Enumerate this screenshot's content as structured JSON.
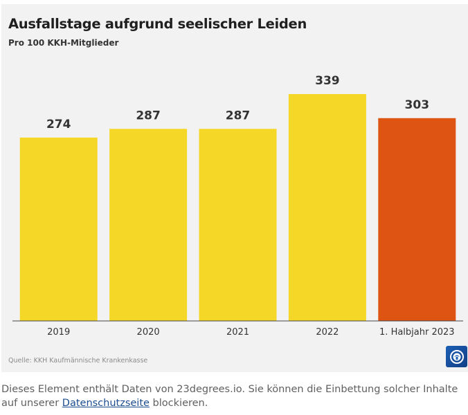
{
  "header": {
    "title": "Ausfallstage aufgrund seelischer Leiden",
    "subtitle": "Pro 100 KKH-Mitglieder"
  },
  "footer": {
    "source": "Quelle: KKH Kaufmännische Krankenkasse"
  },
  "icons": {
    "brand": "tagesschau-logo-icon"
  },
  "colors": {
    "bar_default": "#f5d727",
    "bar_highlight": "#dd5413",
    "card_background": "#f2f2f2",
    "link": "#1a4d8f"
  },
  "notice": {
    "text_before": "Dieses Element enthält Daten von 23degrees.io. Sie können die Einbettung solcher Inhalte auf unserer ",
    "link_label": "Datenschutzseite",
    "text_after": " blockieren."
  },
  "chart_data": {
    "type": "bar",
    "title": "Ausfallstage aufgrund seelischer Leiden",
    "subtitle": "Pro 100 KKH-Mitglieder",
    "categories": [
      "2019",
      "2020",
      "2021",
      "2022",
      "1. Halbjahr 2023"
    ],
    "values": [
      274,
      287,
      287,
      339,
      303
    ],
    "data_labels": [
      "274",
      "287",
      "287",
      "339",
      "303"
    ],
    "highlight_index": 4,
    "ylim": [
      0,
      339
    ],
    "xlabel": "",
    "ylabel": "",
    "grid": false,
    "legend": "none"
  }
}
